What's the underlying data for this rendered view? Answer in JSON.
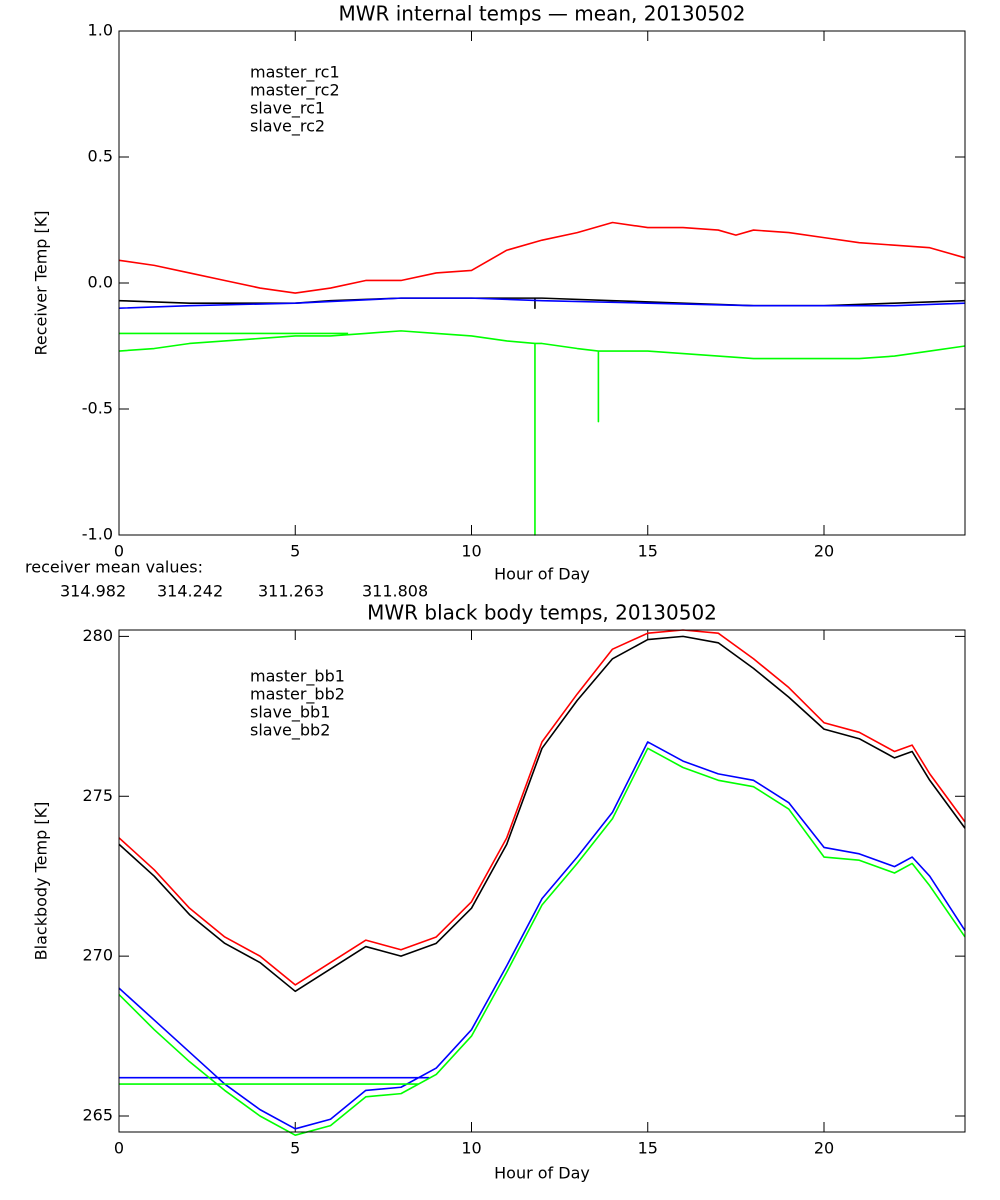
{
  "chart_data": [
    {
      "type": "line",
      "title": "MWR internal temps — mean, 20130502",
      "xlabel": "Hour of Day",
      "ylabel": "Receiver Temp [K]",
      "xlim": [
        0,
        24
      ],
      "xticks": [
        0,
        5,
        10,
        15,
        20
      ],
      "ylim": [
        -1,
        1
      ],
      "yticks": [
        {
          "value": -1,
          "label": "-1.0"
        },
        -0.5,
        {
          "value": 0,
          "label": "0.0"
        },
        0.5,
        {
          "value": 1,
          "label": "1.0"
        }
      ],
      "legend": "upper left",
      "annotation": "receiver mean values:",
      "receiver_means": [
        314.982,
        314.242,
        311.263,
        311.808
      ],
      "series": [
        {
          "name": "master_rc1",
          "color": "#000000",
          "x": [
            0,
            2,
            4,
            5,
            6,
            8,
            10,
            11.8,
            11.8,
            11.8,
            12,
            14,
            16,
            18,
            20,
            22,
            24
          ],
          "values": [
            -0.07,
            -0.08,
            -0.08,
            -0.08,
            -0.07,
            -0.06,
            -0.06,
            -0.06,
            -0.1,
            -0.06,
            -0.06,
            -0.07,
            -0.08,
            -0.09,
            -0.09,
            -0.08,
            -0.07
          ]
        },
        {
          "name": "master_rc2",
          "color": "#ff0000",
          "x": [
            0,
            1,
            2,
            3,
            4,
            5,
            6,
            7,
            8,
            9,
            10,
            11,
            12,
            13,
            14,
            15,
            16,
            17,
            17.5,
            18,
            19,
            20,
            21,
            22,
            23,
            24
          ],
          "values": [
            0.09,
            0.07,
            0.04,
            0.01,
            -0.02,
            -0.04,
            -0.02,
            0.01,
            0.01,
            0.04,
            0.05,
            0.13,
            0.17,
            0.2,
            0.24,
            0.22,
            0.22,
            0.21,
            0.19,
            0.21,
            0.2,
            0.18,
            0.16,
            0.15,
            0.14,
            0.1
          ]
        },
        {
          "name": "slave_rc1",
          "color": "#0000ff",
          "x": [
            0,
            2,
            5,
            8,
            10,
            12,
            15,
            18,
            20,
            22,
            24
          ],
          "values": [
            -0.1,
            -0.09,
            -0.08,
            -0.06,
            -0.06,
            -0.07,
            -0.08,
            -0.09,
            -0.09,
            -0.09,
            -0.08
          ]
        },
        {
          "name": "slave_rc2",
          "color": "#00ff00",
          "x": [
            0,
            6.5,
            6.5,
            0,
            1,
            2,
            3,
            4,
            5,
            6,
            7,
            8,
            9,
            10,
            11,
            11.8,
            11.8,
            11.8,
            12,
            13,
            13.6,
            13.6,
            13.6,
            14,
            15,
            16,
            17,
            18,
            19,
            20,
            21,
            22,
            23,
            24
          ],
          "values": [
            -0.2,
            -0.2,
            null,
            -0.27,
            -0.26,
            -0.24,
            -0.23,
            -0.22,
            -0.21,
            -0.21,
            -0.2,
            -0.19,
            -0.2,
            -0.21,
            -0.23,
            -0.24,
            -1.0,
            -0.24,
            -0.24,
            -0.26,
            -0.27,
            -0.55,
            -0.27,
            -0.27,
            -0.27,
            -0.28,
            -0.29,
            -0.3,
            -0.3,
            -0.3,
            -0.3,
            -0.29,
            -0.27,
            -0.25
          ]
        }
      ]
    },
    {
      "type": "line",
      "title": "MWR black body temps, 20130502",
      "xlabel": "Hour of Day",
      "ylabel": "Blackbody Temp [K]",
      "xlim": [
        0,
        24
      ],
      "xticks": [
        0,
        5,
        10,
        15,
        20
      ],
      "ylim": [
        264.5,
        280.2
      ],
      "yticks": [
        265,
        270,
        275,
        280
      ],
      "legend": "upper left",
      "series": [
        {
          "name": "master_bb1",
          "color": "#000000",
          "x": [
            0,
            1,
            2,
            3,
            4,
            5,
            6,
            7,
            8,
            9,
            10,
            11,
            12,
            13,
            14,
            15,
            16,
            17,
            18,
            19,
            20,
            21,
            22,
            22.5,
            23,
            24
          ],
          "values": [
            273.5,
            272.5,
            271.3,
            270.4,
            269.8,
            268.9,
            269.6,
            270.3,
            270.0,
            270.4,
            271.5,
            273.5,
            276.5,
            278.0,
            279.3,
            279.9,
            280.0,
            279.8,
            279.0,
            278.1,
            277.1,
            276.8,
            276.2,
            276.4,
            275.5,
            274.0
          ]
        },
        {
          "name": "master_bb2",
          "color": "#ff0000",
          "x": [
            0,
            1,
            2,
            3,
            4,
            5,
            6,
            7,
            8,
            9,
            10,
            11,
            12,
            13,
            14,
            15,
            16,
            17,
            18,
            19,
            20,
            21,
            22,
            22.5,
            23,
            24
          ],
          "values": [
            273.7,
            272.7,
            271.5,
            270.6,
            270.0,
            269.1,
            269.8,
            270.5,
            270.2,
            270.6,
            271.7,
            273.7,
            276.7,
            278.2,
            279.6,
            280.1,
            280.2,
            280.1,
            279.3,
            278.4,
            277.3,
            277.0,
            276.4,
            276.6,
            275.7,
            274.2
          ]
        },
        {
          "name": "slave_bb1",
          "color": "#0000ff",
          "x": [
            0,
            8.8,
            8.8,
            0,
            1,
            2,
            3,
            4,
            5,
            6,
            7,
            8,
            9,
            10,
            11,
            12,
            13,
            14,
            15,
            16,
            17,
            18,
            19,
            20,
            21,
            22,
            22.5,
            23,
            24
          ],
          "values": [
            266.2,
            266.2,
            null,
            269.0,
            268.0,
            267.0,
            266.0,
            265.2,
            264.6,
            264.9,
            265.8,
            265.9,
            266.5,
            267.7,
            269.7,
            271.8,
            273.1,
            274.5,
            276.7,
            276.1,
            275.7,
            275.5,
            274.8,
            273.4,
            273.2,
            272.8,
            273.1,
            272.5,
            270.8
          ]
        },
        {
          "name": "slave_bb2",
          "color": "#00ff00",
          "x": [
            0,
            8.5,
            8.5,
            0,
            1,
            2,
            3,
            4,
            5,
            6,
            7,
            8,
            9,
            10,
            11,
            12,
            13,
            14,
            15,
            16,
            17,
            18,
            19,
            20,
            21,
            22,
            22.5,
            23,
            24
          ],
          "values": [
            266.0,
            266.0,
            null,
            268.8,
            267.7,
            266.7,
            265.8,
            265.0,
            264.4,
            264.7,
            265.6,
            265.7,
            266.3,
            267.5,
            269.5,
            271.6,
            272.9,
            274.3,
            276.5,
            275.9,
            275.5,
            275.3,
            274.6,
            273.1,
            273.0,
            272.6,
            272.9,
            272.2,
            270.6
          ]
        }
      ]
    }
  ]
}
